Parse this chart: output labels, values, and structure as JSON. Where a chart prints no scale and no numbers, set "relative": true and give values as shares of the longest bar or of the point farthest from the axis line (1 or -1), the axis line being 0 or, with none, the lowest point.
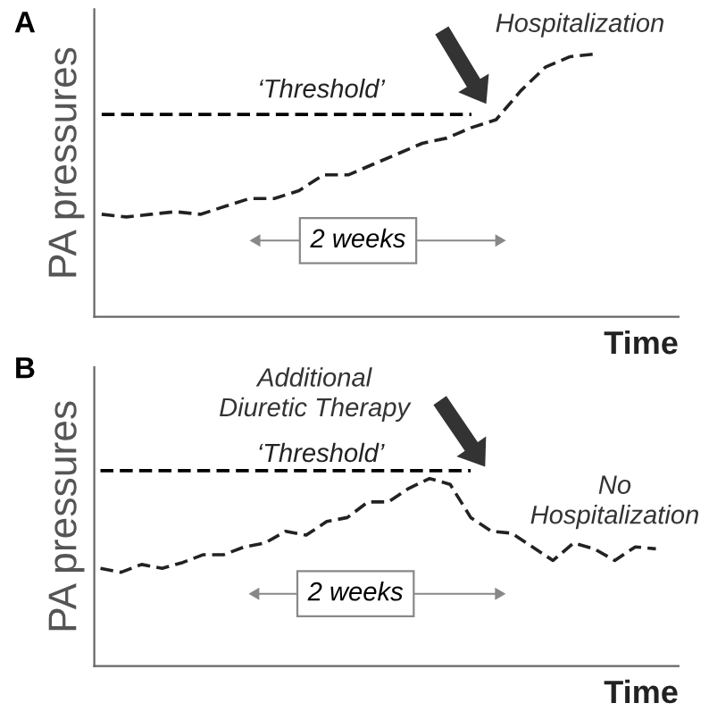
{
  "chart_data": [
    {
      "type": "line",
      "title": "A",
      "xlabel": "Time",
      "ylabel": "PA pressures",
      "relative": true,
      "line_style": "dashed",
      "marker": "none",
      "grid": false,
      "legend": false,
      "categories": [
        null,
        null,
        null,
        null,
        null,
        null,
        null,
        null,
        null,
        null,
        null,
        null,
        null,
        null,
        null,
        null,
        null,
        null,
        null,
        null,
        null
      ],
      "series": [
        {
          "name": "‘Threshold’",
          "color": "#000000",
          "values": [
            0.77,
            0.77,
            0.77,
            0.77,
            0.77,
            0.77,
            0.77,
            0.77,
            0.77,
            0.77,
            0.77,
            0.77,
            0.77,
            0.77,
            0.77,
            0.77,
            null,
            null,
            null,
            null,
            null
          ]
        },
        {
          "color": "#222222",
          "values": [
            0.39,
            0.38,
            0.39,
            0.4,
            0.39,
            0.42,
            0.45,
            0.45,
            0.48,
            0.54,
            0.54,
            0.58,
            0.62,
            0.66,
            0.68,
            0.72,
            0.75,
            0.86,
            0.95,
            0.99,
            1.0
          ]
        }
      ],
      "annotations": [
        "Hospitalization",
        "2 weeks"
      ]
    },
    {
      "type": "line",
      "title": "B",
      "xlabel": "Time",
      "ylabel": "PA pressures",
      "relative": true,
      "line_style": "dashed",
      "marker": "none",
      "grid": false,
      "legend": false,
      "categories": [
        null,
        null,
        null,
        null,
        null,
        null,
        null,
        null,
        null,
        null,
        null,
        null,
        null,
        null,
        null,
        null,
        null,
        null,
        null,
        null,
        null,
        null,
        null,
        null,
        null,
        null,
        null,
        null
      ],
      "series": [
        {
          "name": "‘Threshold’",
          "color": "#000000",
          "values": [
            1.0,
            1.0,
            1.0,
            1.0,
            1.0,
            1.0,
            1.0,
            1.0,
            1.0,
            1.0,
            1.0,
            1.0,
            1.0,
            1.0,
            1.0,
            1.0,
            1.0,
            1.0,
            1.0,
            null,
            null,
            null,
            null,
            null,
            null,
            null,
            null,
            null
          ]
        },
        {
          "color": "#222222",
          "values": [
            0.5,
            0.48,
            0.52,
            0.5,
            0.53,
            0.57,
            0.57,
            0.61,
            0.63,
            0.69,
            0.67,
            0.74,
            0.76,
            0.84,
            0.84,
            0.91,
            0.96,
            0.93,
            0.76,
            0.69,
            0.68,
            0.61,
            0.54,
            0.63,
            0.6,
            0.54,
            0.61,
            0.6
          ]
        }
      ],
      "annotations": [
        "Additional\nDiuretic Therapy",
        "2 weeks",
        "No\nHospitalization"
      ]
    }
  ]
}
